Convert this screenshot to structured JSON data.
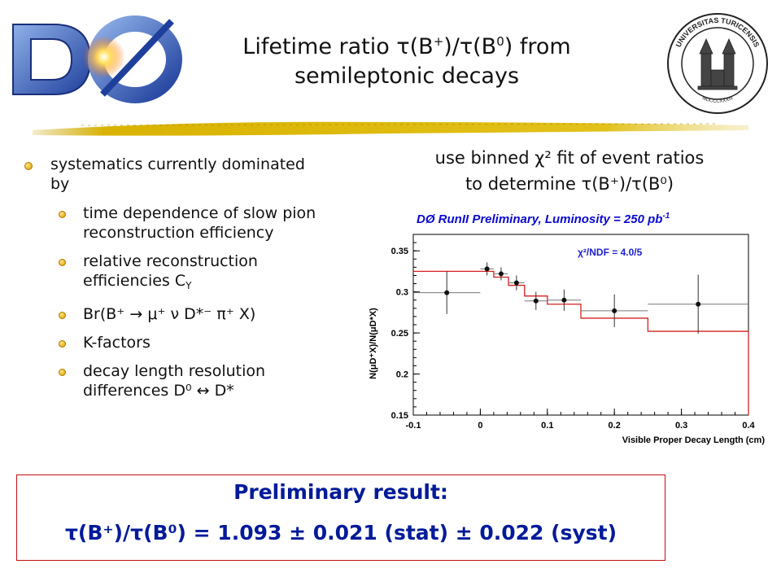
{
  "logo_left": {
    "text": "DØ"
  },
  "logo_right": {
    "text_top": "UNIVERSITAS TURICENSIS",
    "text_bottom": "MDCCCXXXIII"
  },
  "title": {
    "line1": "Lifetime ratio τ(B",
    "line1_sup1": "+",
    "line1_mid": ")/τ(B",
    "line1_sup2": "0",
    "line1_end": ") from",
    "line2": "semileptonic decays"
  },
  "bullets": {
    "main": "systematics currently dominated by",
    "items": [
      {
        "text": "time dependence of slow pion reconstruction efficiency"
      },
      {
        "text": "relative reconstruction efficiencies C",
        "sub": "Y"
      },
      {
        "text": "Br(B⁺ → μ⁺ ν D*⁻ π⁺ X)"
      },
      {
        "text": "K-factors"
      },
      {
        "text": "decay length resolution differences D⁰ ↔ D*"
      }
    ]
  },
  "fit_note": {
    "line1": "use binned χ² fit of event ratios",
    "line2": "to determine τ(B⁺)/τ(B⁰)"
  },
  "chart_data": {
    "type": "scatter",
    "title": "DØ  RunII  Preliminary, Luminosity = 250 pb",
    "title_sup": "-1",
    "annotation": "χ²/NDF = 4.0/5",
    "xlabel": "Visible Proper Decay Length (cm)",
    "ylabel": "N(μD⁺X)/N(μD*X)",
    "xlim": [
      -0.1,
      0.4
    ],
    "ylim": [
      0.15,
      0.37
    ],
    "x_ticks": [
      "-0.1",
      "0",
      "0.1",
      "0.2",
      "0.3",
      "0.4"
    ],
    "y_ticks": [
      "0.15",
      "0.2",
      "0.25",
      "0.3",
      "0.35"
    ],
    "points": [
      {
        "x": -0.05,
        "y": 0.299,
        "xerr": 0.05,
        "yerr": 0.026
      },
      {
        "x": 0.01,
        "y": 0.328,
        "xerr": 0.01,
        "yerr": 0.008
      },
      {
        "x": 0.031,
        "y": 0.322,
        "xerr": 0.01,
        "yerr": 0.008
      },
      {
        "x": 0.054,
        "y": 0.311,
        "xerr": 0.012,
        "yerr": 0.009
      },
      {
        "x": 0.083,
        "y": 0.289,
        "xerr": 0.017,
        "yerr": 0.011
      },
      {
        "x": 0.125,
        "y": 0.29,
        "xerr": 0.025,
        "yerr": 0.013
      },
      {
        "x": 0.2,
        "y": 0.277,
        "xerr": 0.05,
        "yerr": 0.02
      },
      {
        "x": 0.325,
        "y": 0.285,
        "xerr": 0.075,
        "yerr": 0.036
      }
    ],
    "fit_steps": [
      {
        "x0": -0.1,
        "x1": 0.0,
        "y": 0.325
      },
      {
        "x0": 0.0,
        "x1": 0.02,
        "y": 0.325
      },
      {
        "x0": 0.02,
        "x1": 0.042,
        "y": 0.318
      },
      {
        "x0": 0.042,
        "x1": 0.066,
        "y": 0.308
      },
      {
        "x0": 0.066,
        "x1": 0.1,
        "y": 0.295
      },
      {
        "x0": 0.1,
        "x1": 0.15,
        "y": 0.285
      },
      {
        "x0": 0.15,
        "x1": 0.25,
        "y": 0.268
      },
      {
        "x0": 0.25,
        "x1": 0.4,
        "y": 0.252
      }
    ],
    "colors": {
      "fit": "#d42020",
      "data": "#111111",
      "title": "#0a0ad0",
      "annotation": "#2020cc"
    }
  },
  "result": {
    "title": "Preliminary result:",
    "value": "τ(B⁺)/τ(B⁰) = 1.093 ± 0.021 (stat) ± 0.022 (syst)"
  }
}
